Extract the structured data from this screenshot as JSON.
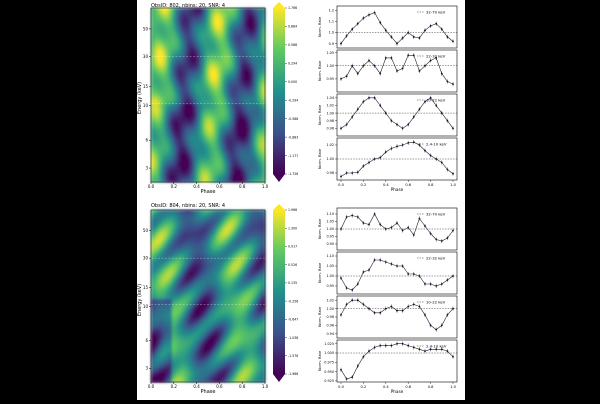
{
  "figure": {
    "panels": [
      {
        "title": "ObsID: 802, nbins: 20, SNR: 4",
        "ylabel": "Energy (keV)",
        "xlabel": "Phase",
        "yticks": [
          "3",
          "6",
          "10",
          "15",
          "30",
          "50"
        ],
        "xticks": [
          "0.0",
          "0.2",
          "0.4",
          "0.6",
          "0.8",
          "1.0"
        ],
        "colorbar_ticks": [
          "1.766",
          "0.884",
          "0.588",
          "0.294",
          "0.000",
          "-0.294",
          "-0.588",
          "-0.883",
          "-1.177",
          "-1.726"
        ]
      },
      {
        "title": "ObsID: 804, nbins: 20, SNR: 4",
        "ylabel": "Energy (keV)",
        "xlabel": "Phase",
        "yticks": [
          "3",
          "6",
          "10",
          "15",
          "30",
          "50"
        ],
        "xticks": [
          "0.0",
          "0.2",
          "0.4",
          "0.6",
          "0.8",
          "1.0"
        ],
        "colorbar_ticks": [
          "1.966",
          "1.300",
          "0.917",
          "0.526",
          "0.135",
          "-0.256",
          "-0.647",
          "-1.038",
          "-1.576",
          "-1.966"
        ]
      }
    ]
  },
  "chart_data": [
    {
      "type": "heatmap",
      "title": "ObsID: 802, nbins: 20, SNR: 4",
      "xlabel": "Phase",
      "ylabel": "Energy (keV)",
      "xlim": [
        0,
        1
      ],
      "yscale": "log",
      "colormap": "viridis",
      "colorbar_range": [
        -1.726,
        1.766
      ]
    },
    {
      "type": "line",
      "ylabel": "Norm. Rate",
      "xlabel": "Phase",
      "xlim": [
        0,
        1
      ],
      "legend": "top-right",
      "series_color": "#6a2c91",
      "subplots": [
        {
          "name": "32-70 keV",
          "ylim": [
            0.86,
            1.24
          ],
          "ticks": [
            "1.2",
            "1.1",
            "1.0",
            "0.9"
          ],
          "x": [
            0.0,
            0.05,
            0.1,
            0.15,
            0.2,
            0.25,
            0.3,
            0.35,
            0.4,
            0.45,
            0.5,
            0.55,
            0.6,
            0.65,
            0.7,
            0.75,
            0.8,
            0.85,
            0.9,
            0.95,
            1.0
          ],
          "values": [
            0.9,
            0.97,
            1.03,
            1.08,
            1.13,
            1.16,
            1.18,
            1.09,
            1.02,
            0.96,
            0.9,
            0.95,
            1.0,
            0.96,
            0.95,
            1.02,
            1.06,
            1.08,
            1.03,
            0.96,
            0.92
          ]
        },
        {
          "name": "22-32 keV",
          "ylim": [
            0.9,
            1.06
          ],
          "ticks": [
            "1.05",
            "1.00",
            "0.95"
          ],
          "x": [
            0.0,
            0.05,
            0.1,
            0.15,
            0.2,
            0.25,
            0.3,
            0.35,
            0.4,
            0.45,
            0.5,
            0.55,
            0.6,
            0.65,
            0.7,
            0.75,
            0.8,
            0.85,
            0.9,
            0.95,
            1.0
          ],
          "values": [
            0.95,
            0.96,
            1.0,
            0.97,
            1.0,
            1.02,
            1.0,
            0.97,
            1.03,
            1.03,
            0.98,
            0.99,
            1.04,
            1.04,
            0.98,
            1.0,
            1.02,
            1.03,
            0.97,
            0.94,
            0.93
          ]
        },
        {
          "name": "10-22 keV",
          "ylim": [
            0.94,
            1.05
          ],
          "ticks": [
            "1.04",
            "1.02",
            "1.00",
            "0.98",
            "0.96"
          ],
          "x": [
            0.0,
            0.05,
            0.1,
            0.15,
            0.2,
            0.25,
            0.3,
            0.35,
            0.4,
            0.45,
            0.5,
            0.55,
            0.6,
            0.65,
            0.7,
            0.75,
            0.8,
            0.85,
            0.9,
            0.95,
            1.0
          ],
          "values": [
            0.96,
            0.97,
            0.99,
            1.01,
            1.03,
            1.04,
            1.04,
            1.02,
            1.0,
            0.98,
            0.97,
            0.96,
            0.97,
            0.99,
            1.01,
            1.03,
            1.04,
            1.02,
            1.0,
            0.98,
            0.96
          ]
        },
        {
          "name": "2.4-10 keV",
          "ylim": [
            0.97,
            1.03
          ],
          "ticks": [
            "1.02",
            "1.00",
            "0.98"
          ],
          "x": [
            0.0,
            0.05,
            0.1,
            0.15,
            0.2,
            0.25,
            0.3,
            0.35,
            0.4,
            0.45,
            0.5,
            0.55,
            0.6,
            0.65,
            0.7,
            0.75,
            0.8,
            0.85,
            0.9,
            0.95,
            1.0
          ],
          "values": [
            0.975,
            0.98,
            0.98,
            0.981,
            0.99,
            0.995,
            1.0,
            1.002,
            1.01,
            1.015,
            1.018,
            1.02,
            1.023,
            1.024,
            1.02,
            1.012,
            1.005,
            1.0,
            0.995,
            0.985,
            0.979
          ]
        }
      ]
    },
    {
      "type": "heatmap",
      "title": "ObsID: 804, nbins: 20, SNR: 4",
      "xlabel": "Phase",
      "ylabel": "Energy (keV)",
      "xlim": [
        0,
        1
      ],
      "yscale": "log",
      "colormap": "viridis",
      "colorbar_range": [
        -1.966,
        1.966
      ]
    },
    {
      "type": "line",
      "ylabel": "Norm. Rate",
      "xlabel": "Phase",
      "xlim": [
        0,
        1
      ],
      "legend": "top-right",
      "series_color": "#6a2c91",
      "subplots": [
        {
          "name": "32-70 keV",
          "ylim": [
            0.86,
            1.14
          ],
          "ticks": [
            "1.10",
            "1.05",
            "1.00",
            "0.95",
            "0.90"
          ],
          "x": [
            0.0,
            0.05,
            0.1,
            0.15,
            0.2,
            0.25,
            0.3,
            0.35,
            0.4,
            0.45,
            0.5,
            0.55,
            0.6,
            0.65,
            0.7,
            0.75,
            0.8,
            0.85,
            0.9,
            0.95,
            1.0
          ],
          "values": [
            1.0,
            1.08,
            1.09,
            1.08,
            1.04,
            1.03,
            1.1,
            1.03,
            1.0,
            1.01,
            1.04,
            0.99,
            1.01,
            0.96,
            1.07,
            1.02,
            0.97,
            0.93,
            0.92,
            0.94,
            0.99
          ]
        },
        {
          "name": "22-32 keV",
          "ylim": [
            0.91,
            1.12
          ],
          "ticks": [
            "1.10",
            "1.05",
            "1.00",
            "0.95"
          ],
          "x": [
            0.0,
            0.05,
            0.1,
            0.15,
            0.2,
            0.25,
            0.3,
            0.35,
            0.4,
            0.45,
            0.5,
            0.55,
            0.6,
            0.65,
            0.7,
            0.75,
            0.8,
            0.85,
            0.9,
            0.95,
            1.0
          ],
          "values": [
            0.99,
            0.94,
            0.93,
            0.96,
            1.02,
            1.03,
            1.08,
            1.08,
            1.07,
            1.06,
            1.05,
            1.05,
            1.01,
            1.01,
            1.0,
            0.96,
            0.96,
            0.95,
            0.96,
            0.98,
            1.0
          ]
        },
        {
          "name": "10-22 keV",
          "ylim": [
            0.93,
            1.03
          ],
          "ticks": [
            "1.02",
            "1.00",
            "0.98",
            "0.96",
            "0.94"
          ],
          "x": [
            0.0,
            0.05,
            0.1,
            0.15,
            0.2,
            0.25,
            0.3,
            0.35,
            0.4,
            0.45,
            0.5,
            0.55,
            0.6,
            0.65,
            0.7,
            0.75,
            0.8,
            0.85,
            0.9,
            0.95,
            1.0
          ],
          "values": [
            0.985,
            1.01,
            1.02,
            1.02,
            1.01,
            1.0,
            0.99,
            0.99,
            1.0,
            1.005,
            0.995,
            0.995,
            1.005,
            1.01,
            1.005,
            0.985,
            0.96,
            0.95,
            0.96,
            0.985,
            1.0
          ]
        },
        {
          "name": "2.4-10 keV",
          "ylim": [
            0.922,
            1.035
          ],
          "ticks": [
            "1.025",
            "1.000",
            "0.975",
            "0.950",
            "0.925"
          ],
          "x": [
            0.0,
            0.05,
            0.1,
            0.15,
            0.2,
            0.25,
            0.3,
            0.35,
            0.4,
            0.45,
            0.5,
            0.55,
            0.6,
            0.65,
            0.7,
            0.75,
            0.8,
            0.85,
            0.9,
            0.95,
            1.0
          ],
          "values": [
            0.955,
            0.93,
            0.935,
            0.965,
            0.99,
            1.005,
            1.015,
            1.02,
            1.02,
            1.02,
            1.025,
            1.025,
            1.02,
            1.015,
            1.01,
            1.005,
            1.01,
            1.01,
            1.01,
            1.005,
            0.99
          ]
        }
      ]
    }
  ]
}
